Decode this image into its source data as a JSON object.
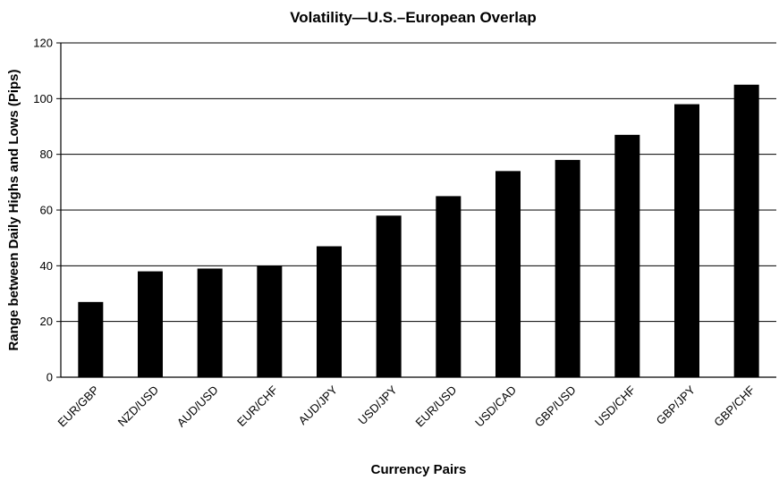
{
  "chart_data": {
    "type": "bar",
    "title": "Volatility—U.S.–European Overlap",
    "xlabel": "Currency Pairs",
    "ylabel": "Range between Daily Highs and Lows (Pips)",
    "categories": [
      "EUR/GBP",
      "NZD/USD",
      "AUD/USD",
      "EUR/CHF",
      "AUD/JPY",
      "USD/JPY",
      "EUR/USD",
      "USD/CAD",
      "GBP/USD",
      "USD/CHF",
      "GBP/JPY",
      "GBP/CHF"
    ],
    "values": [
      27,
      38,
      39,
      40,
      47,
      58,
      65,
      74,
      78,
      87,
      98,
      105
    ],
    "ylim": [
      0,
      120
    ],
    "yticks": [
      "0",
      "20",
      "40",
      "60",
      "80",
      "100",
      "120"
    ],
    "grid": true,
    "legend": false,
    "bar_color": "#000000"
  }
}
